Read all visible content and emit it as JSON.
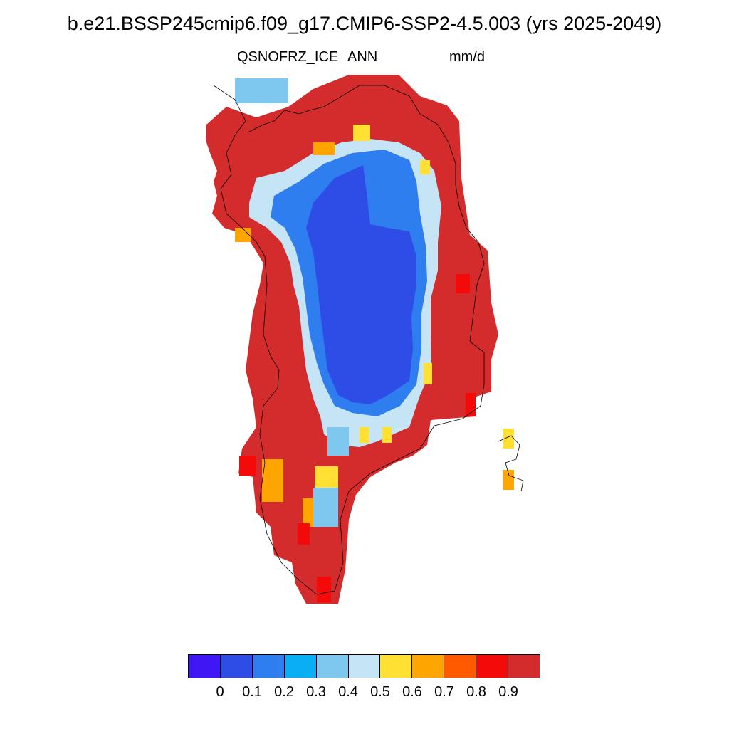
{
  "title": "b.e21.BSSP245cmip6.f09_g17.CMIP6-SSP2-4.5.003 (yrs 2025-2049)",
  "variable": "QSNOFRZ_ICE",
  "period": "ANN",
  "units": "mm/d",
  "colorbar": {
    "colors": [
      "#4016f5",
      "#2e4de6",
      "#2e7ef0",
      "#0aaef5",
      "#7ec8ef",
      "#c5e5f7",
      "#ffe033",
      "#ffa500",
      "#ff5a00",
      "#f50a0a",
      "#d42c2c"
    ],
    "labels": [
      "0",
      "0.1",
      "0.2",
      "0.3",
      "0.4",
      "0.5",
      "0.6",
      "0.7",
      "0.8",
      "0.9"
    ]
  },
  "map": {
    "region": "Greenland",
    "interior_value_range": [
      0.0,
      0.2
    ],
    "coastal_value_range": [
      0.9,
      1.0
    ],
    "transition_value_range": [
      0.3,
      0.8
    ]
  }
}
